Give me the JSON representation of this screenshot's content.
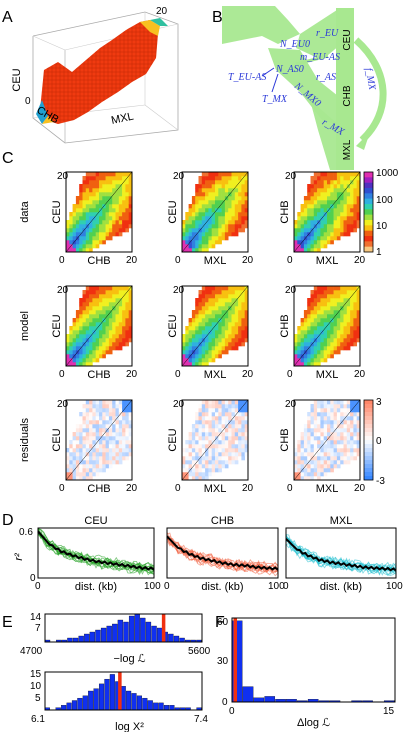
{
  "panels": {
    "A": "A",
    "B": "B",
    "C": "C",
    "D": "D",
    "E": "E",
    "F": "F"
  },
  "panel_a": {
    "axis_y": "CEU",
    "axis_x1": "CHB",
    "axis_x2": "MXL",
    "tick_top": "20",
    "tick_zero": "0"
  },
  "panel_b": {
    "pops": [
      "CEU",
      "CHB",
      "MXL"
    ],
    "params": [
      "N_EU0",
      "m_EU-AS",
      "N_AS0",
      "T_EU-AS",
      "T_MX",
      "N_MX0",
      "r_EU",
      "r_AS",
      "r_MX",
      "f_MX"
    ]
  },
  "panel_c": {
    "row_labels": [
      "data",
      "model",
      "residuals"
    ],
    "colorbar_top_ticks": [
      "1000",
      "100",
      "10",
      "1"
    ],
    "colorbar_res_ticks": [
      "3",
      "0",
      "-3"
    ],
    "tick_20": "20",
    "tick_0": "0"
  },
  "colors": {
    "ridge": "#f03a10",
    "tree": "#a8e890",
    "blue_text": "#2a38d8",
    "hist_bar": "#1030f0",
    "red_line": "#f03010"
  },
  "chart_data": [
    {
      "type": "heatmap",
      "title": "",
      "rows": [
        "data",
        "model",
        "residuals"
      ],
      "pairs": [
        {
          "xlabel": "CHB",
          "ylabel": "CEU"
        },
        {
          "xlabel": "MXL",
          "ylabel": "CEU"
        },
        {
          "xlabel": "MXL",
          "ylabel": "CHB"
        }
      ],
      "xlim": [
        0,
        20
      ],
      "ylim": [
        0,
        20
      ],
      "color_scale": "log",
      "color_range": [
        1,
        1000
      ],
      "residual_range": [
        -3,
        3
      ]
    },
    {
      "type": "line",
      "ylabel": "r²",
      "xlim": [
        0,
        100
      ],
      "ylim": [
        0,
        0.6
      ],
      "xticks": [
        "0",
        "100"
      ],
      "yticks": [
        "0",
        "0.6"
      ],
      "x": [
        0,
        10,
        20,
        30,
        40,
        50,
        60,
        70,
        80,
        90,
        100
      ],
      "panels": [
        {
          "title": "CEU",
          "xlabel": "dist. (kb)",
          "color": "#20a020",
          "mean": [
            0.56,
            0.4,
            0.32,
            0.27,
            0.23,
            0.2,
            0.18,
            0.16,
            0.14,
            0.12,
            0.11
          ]
        },
        {
          "title": "CHB",
          "xlabel": "dist. (kb)",
          "color": "#f06040",
          "mean": [
            0.5,
            0.36,
            0.29,
            0.24,
            0.21,
            0.18,
            0.16,
            0.15,
            0.13,
            0.12,
            0.11
          ]
        },
        {
          "title": "MXL",
          "xlabel": "dist. (kb)",
          "color": "#20c0d0",
          "mean": [
            0.47,
            0.34,
            0.27,
            0.22,
            0.19,
            0.17,
            0.15,
            0.13,
            0.12,
            0.11,
            0.1
          ]
        }
      ]
    },
    {
      "type": "bar",
      "xlabel": "−log ℒ",
      "xlim": [
        4700,
        5600
      ],
      "ylim": [
        0,
        14
      ],
      "xticks": [
        "4700",
        "5600"
      ],
      "yticks": [
        "7",
        "14"
      ],
      "values": [
        1,
        0,
        1,
        1,
        2,
        2,
        3,
        4,
        5,
        6,
        7,
        8,
        9,
        11,
        10,
        13,
        14,
        12,
        10,
        8,
        7,
        5,
        4,
        3,
        2,
        1,
        1,
        1
      ],
      "observed": 5380
    },
    {
      "type": "bar",
      "xlabel": "log X²",
      "xlim": [
        6.1,
        7.4
      ],
      "ylim": [
        0,
        16
      ],
      "xticks": [
        "6.1",
        "7.4"
      ],
      "yticks": [
        "5",
        "10",
        "15"
      ],
      "values": [
        1,
        0,
        1,
        2,
        3,
        4,
        5,
        6,
        8,
        9,
        11,
        13,
        15,
        12,
        10,
        8,
        7,
        6,
        5,
        4,
        3,
        3,
        2,
        2,
        1,
        1,
        1,
        0,
        1
      ],
      "observed": 6.72
    },
    {
      "type": "bar",
      "xlabel": "Δlog ℒ",
      "xlim": [
        0,
        15
      ],
      "ylim": [
        0,
        60
      ],
      "xticks": [
        "0",
        "15"
      ],
      "yticks": [
        "0",
        "30",
        "60"
      ],
      "values": [
        58,
        11,
        3,
        4,
        2,
        2,
        1,
        2,
        1,
        1,
        0,
        1,
        1,
        0,
        1
      ],
      "observed": 0.3
    }
  ],
  "labels": {
    "d_title_1": "CEU",
    "d_title_2": "CHB",
    "d_title_3": "MXL",
    "d_xlabel": "dist. (kb)",
    "d_ylabel": "r²",
    "e_xlabel_1": "−log ℒ",
    "e_xlabel_2": "log X²",
    "f_xlabel": "Δlog ℒ"
  }
}
